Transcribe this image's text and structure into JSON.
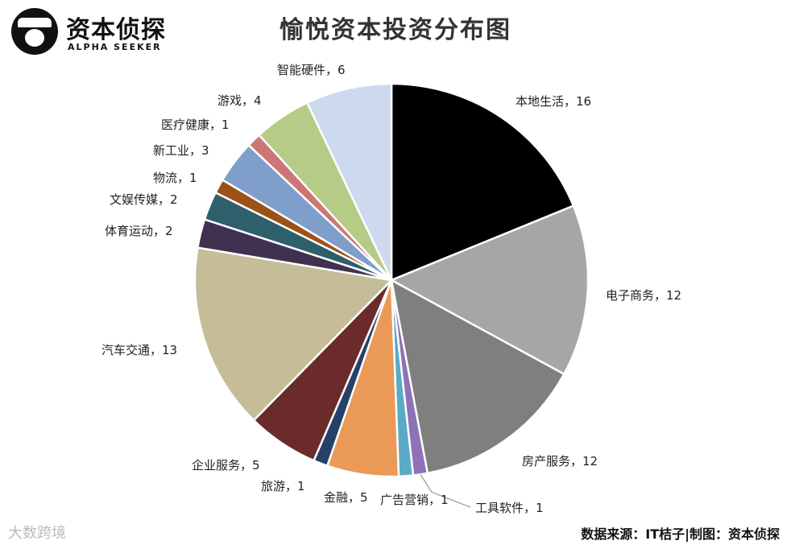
{
  "logo": {
    "title": "资本侦探",
    "subtitle": "ALPHA SEEKER"
  },
  "footer": {
    "source": "数据来源：IT桔子|制图：资本侦探",
    "watermark": "大数跨境"
  },
  "colors": [
    "#000000",
    "#a6a6a6",
    "#7f7f7f",
    "#8e72b5",
    "#5aaac5",
    "#ea9a56",
    "#264169",
    "#6b2b2b",
    "#c4bd97",
    "#403151",
    "#2e5f6b",
    "#9c5217",
    "#7f9ec9",
    "#cc7676",
    "#b6cb85",
    "#cdd9ef"
  ],
  "chart_data": {
    "type": "pie",
    "title": "愉悦资本投资分布图",
    "start": "12 o'clock",
    "direction": "clockwise",
    "slices": [
      {
        "label": "本地生活，16",
        "category": "本地生活",
        "value": 16
      },
      {
        "label": "电子商务，12",
        "category": "电子商务",
        "value": 12
      },
      {
        "label": "房产服务，12",
        "category": "房产服务",
        "value": 12
      },
      {
        "label": "工具软件，1",
        "category": "工具软件",
        "value": 1
      },
      {
        "label": "广告营销，1",
        "category": "广告营销",
        "value": 1
      },
      {
        "label": "金融，5",
        "category": "金融",
        "value": 5
      },
      {
        "label": "旅游，1",
        "category": "旅游",
        "value": 1
      },
      {
        "label": "企业服务，5",
        "category": "企业服务",
        "value": 5
      },
      {
        "label": "汽车交通，13",
        "category": "汽车交通",
        "value": 13
      },
      {
        "label": "体育运动，2",
        "category": "体育运动",
        "value": 2
      },
      {
        "label": "文娱传媒，2",
        "category": "文娱传媒",
        "value": 2
      },
      {
        "label": "物流，1",
        "category": "物流",
        "value": 1
      },
      {
        "label": "新工业，3",
        "category": "新工业",
        "value": 3
      },
      {
        "label": "医疗健康，1",
        "category": "医疗健康",
        "value": 1
      },
      {
        "label": "游戏，4",
        "category": "游戏",
        "value": 4
      },
      {
        "label": "智能硬件，6",
        "category": "智能硬件",
        "value": 6
      }
    ]
  }
}
